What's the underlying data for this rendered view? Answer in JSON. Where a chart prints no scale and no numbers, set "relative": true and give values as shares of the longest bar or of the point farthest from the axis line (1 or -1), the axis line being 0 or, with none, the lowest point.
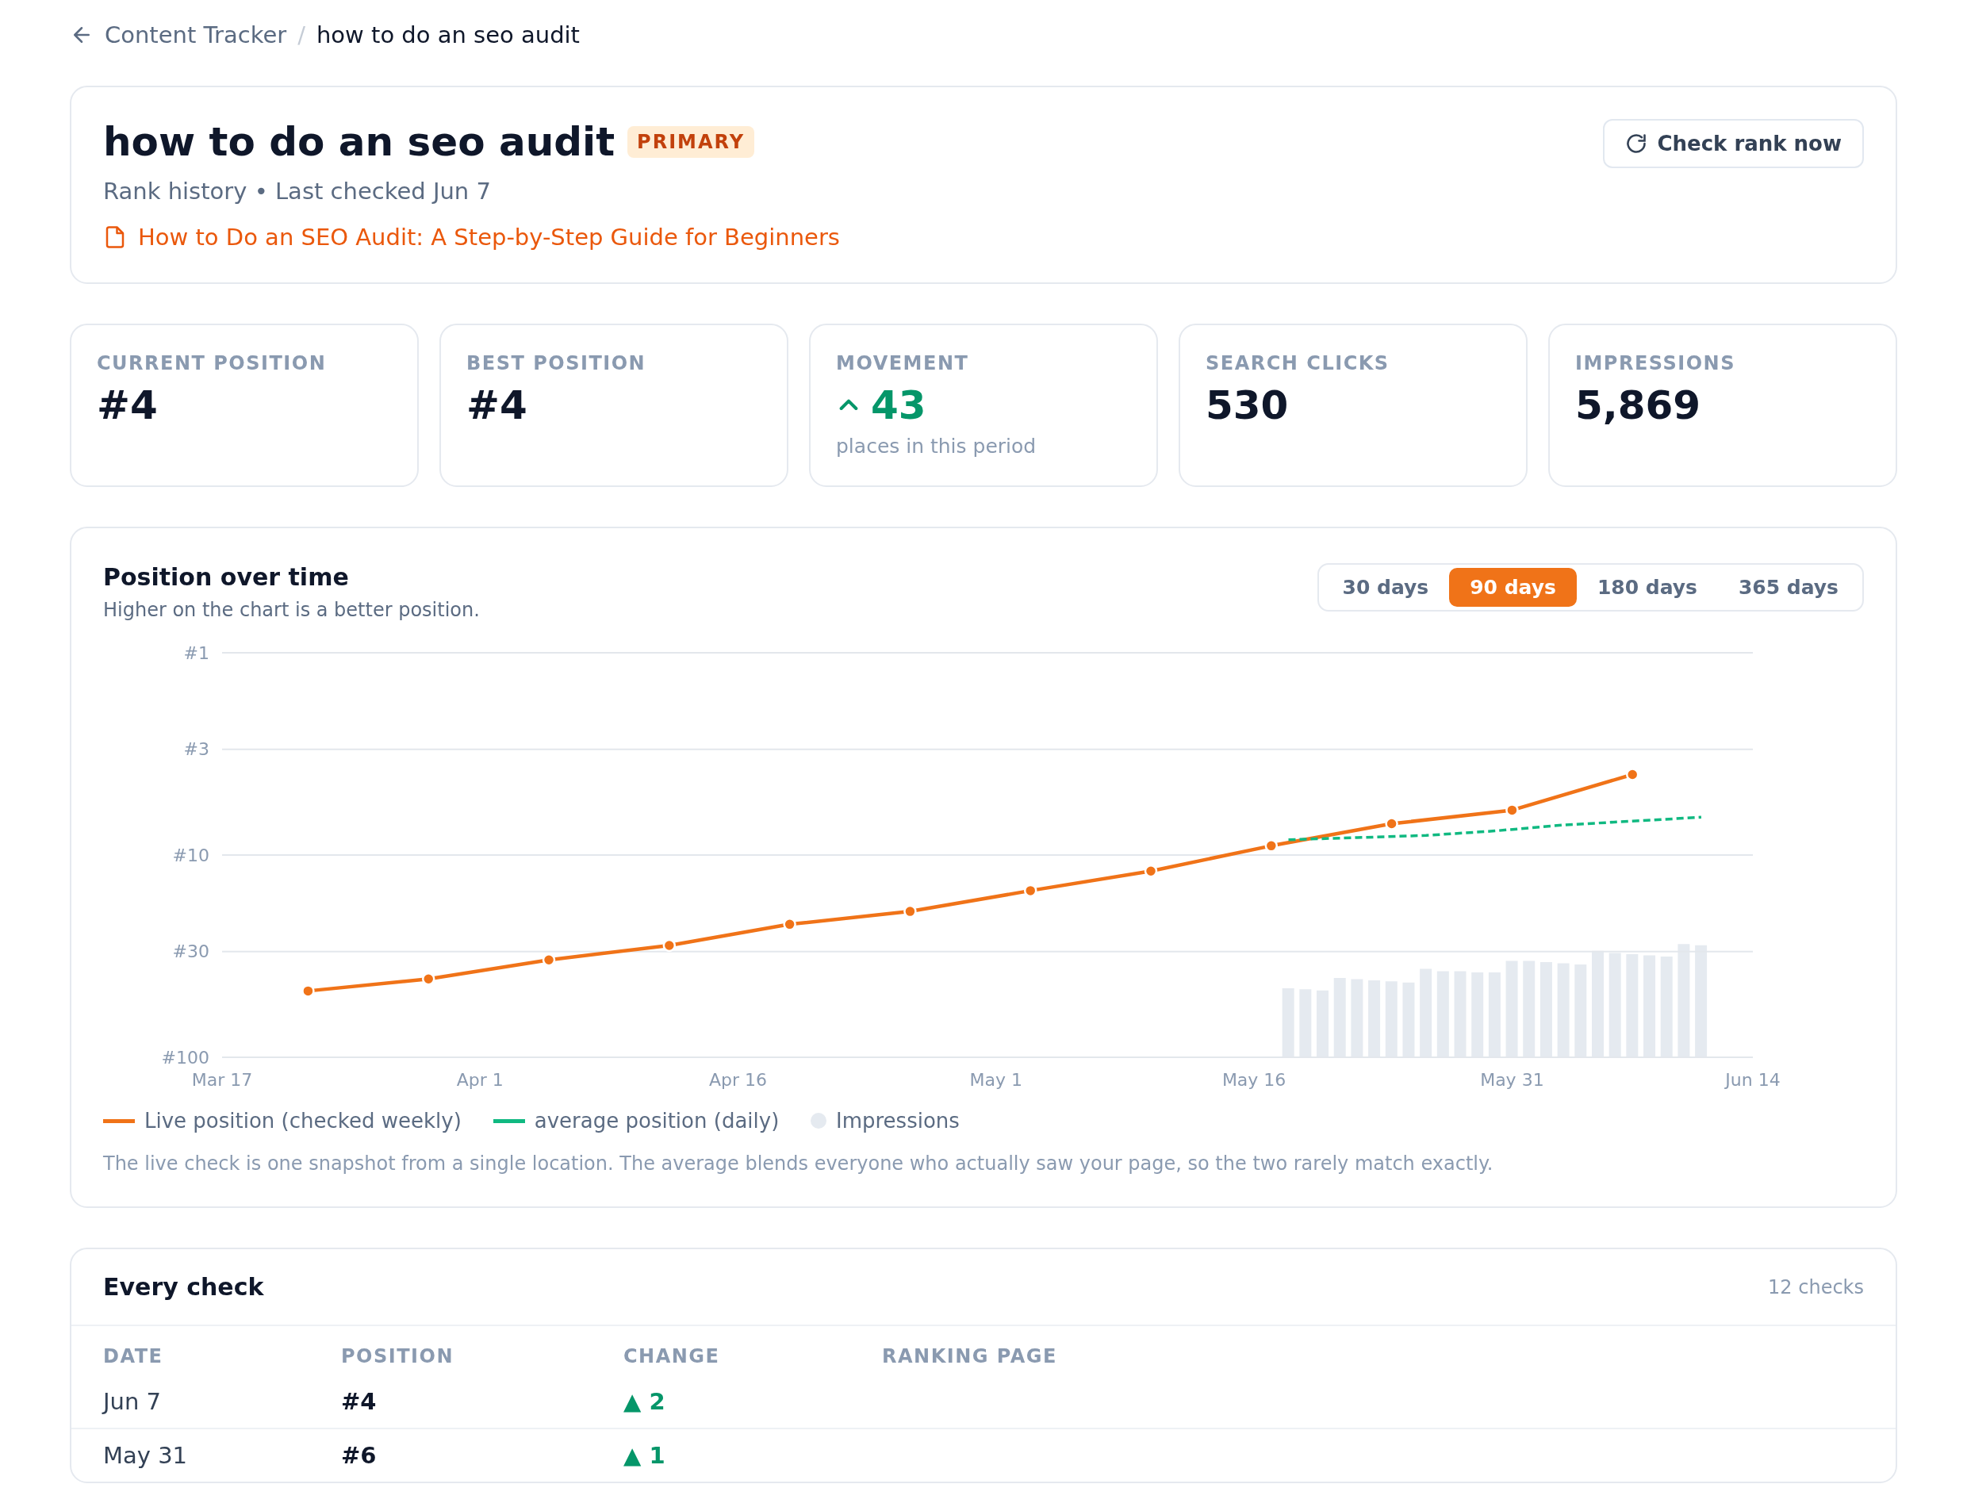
{
  "chart_data": [
    {
      "type": "other",
      "title": "how to do an seo audit",
      "annotations": [
        "Content Tracker",
        "/",
        "how to do an seo audit",
        "PRIMARY",
        "Check rank now",
        "Rank history • Last checked Jun 7",
        "How to Do an SEO Audit: A Step-by-Step Guide for Beginners"
      ]
    },
    {
      "type": "other",
      "categories": [
        "CURRENT POSITION",
        "BEST POSITION",
        "MOVEMENT",
        "SEARCH CLICKS",
        "IMPRESSIONS"
      ],
      "value_labels": [
        "#4",
        "#4",
        "43",
        "530",
        "5,869"
      ],
      "annotations": [
        "places in this period"
      ]
    },
    {
      "type": "line",
      "title": "Position over time",
      "subtitle": "Higher on the chart is a better position.",
      "x": [
        "--03-22",
        "--03-29",
        "--04-05",
        "--04-12",
        "--04-19",
        "--04-26",
        "--05-03",
        "--05-10",
        "--05-17",
        "--05-24",
        "--05-31",
        "--06-07"
      ],
      "series": [
        {
          "name": "Live position (checked weekly)",
          "type": "line",
          "color": "#f07318",
          "marker": "circle",
          "line_style": "solid",
          "values": [
            47,
            41,
            33,
            28,
            22,
            19,
            15,
            12,
            9,
            7,
            6,
            4
          ]
        },
        {
          "name": "average position (daily)",
          "type": "line",
          "color": "#10b981",
          "marker": "none",
          "line_style": "dashed",
          "x": [
            "--05-18",
            "--05-22",
            "--05-26",
            "--05-30",
            "--06-03",
            "--06-07",
            "--06-11"
          ],
          "values": [
            8.4,
            8.2,
            8.0,
            7.6,
            7.1,
            6.8,
            6.5
          ]
        }
      ],
      "xlim": [
        "--03-17",
        "--06-14"
      ],
      "xticks": [
        {
          "value": "--03-17",
          "label": "Mar 17"
        },
        {
          "value": "--04-01",
          "label": "Apr 1"
        },
        {
          "value": "--04-16",
          "label": "Apr 16"
        },
        {
          "value": "--05-01",
          "label": "May 1"
        },
        {
          "value": "--05-16",
          "label": "May 16"
        },
        {
          "value": "--05-31",
          "label": "May 31"
        },
        {
          "value": "--06-14",
          "label": "Jun 14"
        }
      ],
      "ylim": [
        100,
        1
      ],
      "log": "y",
      "yticks": [
        {
          "value": 1,
          "label": "#1"
        },
        {
          "value": 3,
          "label": "#3"
        },
        {
          "value": 10,
          "label": "#10"
        },
        {
          "value": 30,
          "label": "#30"
        },
        {
          "value": 100,
          "label": "#100"
        }
      ],
      "grid": "y",
      "legend": "bottom",
      "annotations": [
        "30 days",
        "90 days",
        "180 days",
        "365 days",
        "The live check is one snapshot from a single location. The average blends everyone who actually saw your page, so the two rarely match exactly."
      ]
    },
    {
      "type": "bar",
      "relative": true,
      "tick_labels": false,
      "xlim": [
        "--03-17",
        "--06-14"
      ],
      "x": [
        "--05-18",
        "--05-19",
        "--05-20",
        "--05-21",
        "--05-22",
        "--05-23",
        "--05-24",
        "--05-25",
        "--05-26",
        "--05-27",
        "--05-28",
        "--05-29",
        "--05-30",
        "--05-31",
        "--06-01",
        "--06-02",
        "--06-03",
        "--06-04",
        "--06-05",
        "--06-06",
        "--06-07",
        "--06-08",
        "--06-09",
        "--06-10",
        "--06-11"
      ],
      "series": [
        {
          "name": "Impressions",
          "color": "#e5eaf0",
          "values": [
            0.61,
            0.6,
            0.59,
            0.7,
            0.69,
            0.68,
            0.67,
            0.66,
            0.78,
            0.76,
            0.76,
            0.75,
            0.75,
            0.85,
            0.85,
            0.84,
            0.83,
            0.82,
            0.94,
            0.92,
            0.91,
            0.9,
            0.89,
            1,
            0.99
          ]
        }
      ]
    },
    {
      "type": "other",
      "title": "Every check",
      "subtitle": "12 checks",
      "categories": [
        "DATE",
        "POSITION",
        "CHANGE",
        "RANKING PAGE"
      ],
      "cell_labels": [
        [
          "Jun 7",
          "#4",
          "▲ 2",
          null
        ],
        [
          "May 31",
          "#6",
          "▲ 1",
          null
        ]
      ]
    }
  ]
}
